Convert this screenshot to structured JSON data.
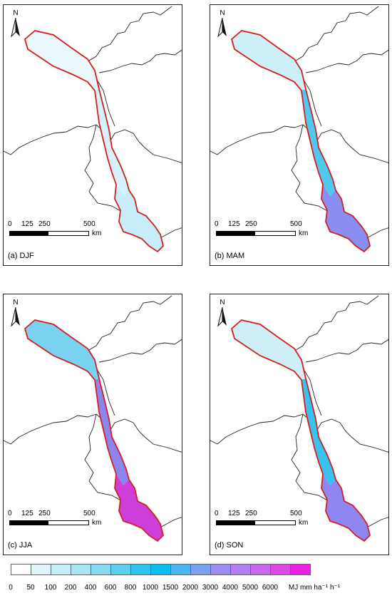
{
  "panels": [
    {
      "label": "(a) DJF",
      "fills": [
        "#eaf8fc",
        "#d6f2fa",
        "#c6edf8"
      ]
    },
    {
      "label": "(b) MAM",
      "fills": [
        "#cdeff8",
        "#4fc9ee",
        "#8a8ef0"
      ]
    },
    {
      "label": "(c) JJA",
      "fills": [
        "#79d3f0",
        "#8b86ee",
        "#cc3fd8"
      ]
    },
    {
      "label": "(d) SON",
      "fills": [
        "#cfeff8",
        "#39c2ee",
        "#8f87ef"
      ]
    }
  ],
  "north_label": "N",
  "scale": {
    "ticks": [
      "0",
      "125",
      "250",
      "500"
    ],
    "unit": "km"
  },
  "legend": {
    "colors": [
      "#ffffff",
      "#e0f5fb",
      "#c6edf8",
      "#a9e4f5",
      "#86daf2",
      "#5ccff0",
      "#2ec4ef",
      "#0bbdee",
      "#4cb4f0",
      "#7ca0f0",
      "#9a8ef2",
      "#b27ef2",
      "#c968ec",
      "#dc48e4",
      "#ea22e0"
    ],
    "ticks": [
      "0",
      "50",
      "100",
      "200",
      "400",
      "600",
      "800",
      "1000",
      "1500",
      "2000",
      "3000",
      "4000",
      "5000",
      "6000"
    ],
    "unit": "MJ mm ha⁻¹ h⁻¹"
  }
}
